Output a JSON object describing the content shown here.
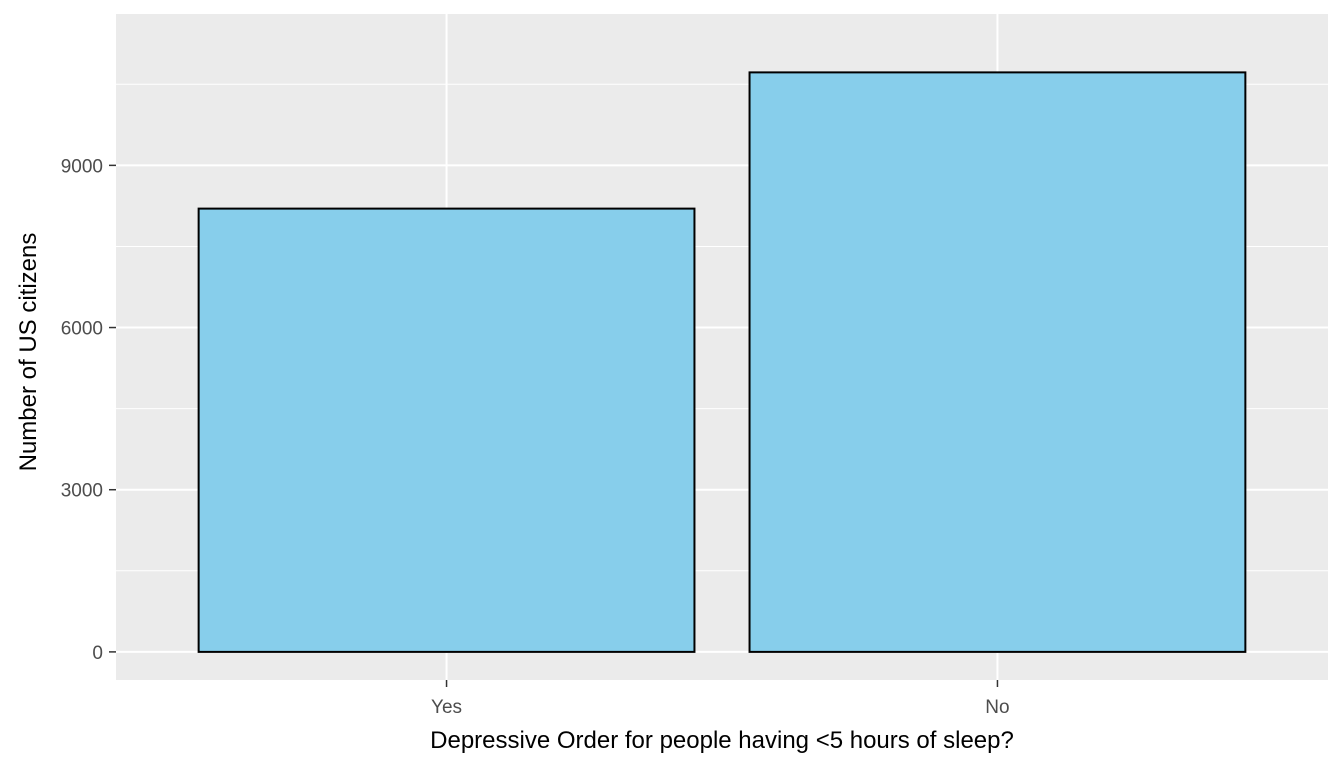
{
  "chart_data": {
    "type": "bar",
    "categories": [
      "Yes",
      "No"
    ],
    "values": [
      8200,
      10720
    ],
    "title": "",
    "xlabel": "Depressive Order for people having <5 hours of sleep?",
    "ylabel": "Number of US citizens",
    "ylim": [
      -520,
      11800
    ],
    "yticks": [
      0,
      3000,
      6000,
      9000
    ],
    "ytick_labels": [
      "0",
      "3000",
      "6000",
      "9000"
    ],
    "grid": true,
    "legend": "none",
    "colors": {
      "bar_fill": "#87CEEB",
      "bar_outline": "#000000",
      "panel_background": "#EBEBEB",
      "grid": "#FFFFFF"
    }
  }
}
